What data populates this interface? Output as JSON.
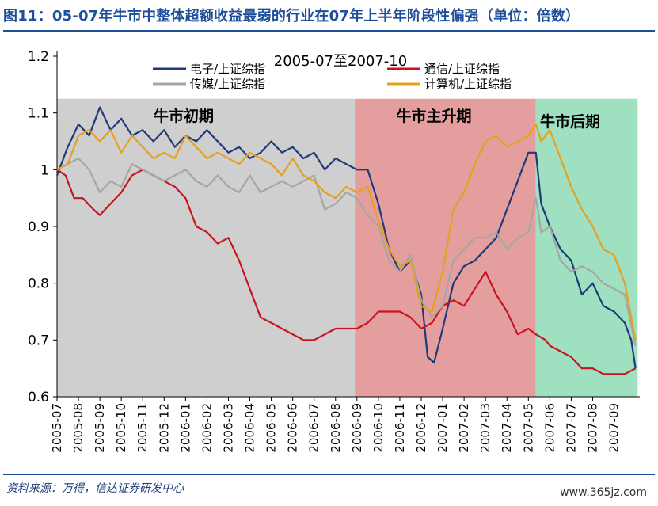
{
  "figure_title": "图11：05-07年牛市中整体超额收益最弱的行业在07年上半年阶段性偏强（单位：倍数）",
  "source_note": "资料来源：万得，信达证券研发中心",
  "watermark": "www.365jz.com",
  "chart_data": {
    "type": "line",
    "title": "2005-07至2007-10",
    "xlabel": "",
    "ylabel": "",
    "ylim": [
      0.6,
      1.2
    ],
    "yticks": [
      "0.6",
      "0.7",
      "0.8",
      "0.9",
      "1",
      "1.1",
      "1.2"
    ],
    "x_categories": [
      "2005-07",
      "2005-08",
      "2005-09",
      "2005-10",
      "2005-11",
      "2005-12",
      "2006-01",
      "2006-02",
      "2006-03",
      "2006-04",
      "2006-05",
      "2006-06",
      "2006-07",
      "2006-08",
      "2006-09",
      "2006-10",
      "2006-11",
      "2006-12",
      "2007-01",
      "2007-02",
      "2007-03",
      "2007-04",
      "2007-05",
      "2007-06",
      "2007-07",
      "2007-08",
      "2007-09"
    ],
    "grid": false,
    "legend_position": "top",
    "phases": [
      {
        "label": "牛市初期",
        "start_month": 0,
        "end_month": 13.9,
        "color": "#cfcfcf"
      },
      {
        "label": "牛市主升期",
        "start_month": 13.9,
        "end_month": 22.35,
        "color": "#e49e9e"
      },
      {
        "label": "牛市后期",
        "start_month": 22.35,
        "end_month": 27.1,
        "color": "#9ee0bf"
      }
    ],
    "series": [
      {
        "name": "电子/上证综指",
        "color": "#1f3a7a",
        "points": [
          [
            0,
            0.99
          ],
          [
            0.5,
            1.04
          ],
          [
            1,
            1.08
          ],
          [
            1.5,
            1.06
          ],
          [
            2,
            1.11
          ],
          [
            2.5,
            1.07
          ],
          [
            3,
            1.09
          ],
          [
            3.5,
            1.06
          ],
          [
            4,
            1.07
          ],
          [
            4.5,
            1.05
          ],
          [
            5,
            1.07
          ],
          [
            5.5,
            1.04
          ],
          [
            6,
            1.06
          ],
          [
            6.5,
            1.05
          ],
          [
            7,
            1.07
          ],
          [
            7.5,
            1.05
          ],
          [
            8,
            1.03
          ],
          [
            8.5,
            1.04
          ],
          [
            9,
            1.02
          ],
          [
            9.5,
            1.03
          ],
          [
            10,
            1.05
          ],
          [
            10.5,
            1.03
          ],
          [
            11,
            1.04
          ],
          [
            11.5,
            1.02
          ],
          [
            12,
            1.03
          ],
          [
            12.5,
            1.0
          ],
          [
            13,
            1.02
          ],
          [
            13.5,
            1.01
          ],
          [
            14,
            1.0
          ],
          [
            14.5,
            1.0
          ],
          [
            15,
            0.94
          ],
          [
            15.5,
            0.86
          ],
          [
            16,
            0.82
          ],
          [
            16.5,
            0.84
          ],
          [
            17,
            0.78
          ],
          [
            17.3,
            0.67
          ],
          [
            17.6,
            0.66
          ],
          [
            18,
            0.72
          ],
          [
            18.5,
            0.8
          ],
          [
            19,
            0.83
          ],
          [
            19.5,
            0.84
          ],
          [
            20,
            0.86
          ],
          [
            20.5,
            0.88
          ],
          [
            21,
            0.93
          ],
          [
            21.5,
            0.98
          ],
          [
            22,
            1.03
          ],
          [
            22.35,
            1.03
          ],
          [
            22.6,
            0.94
          ],
          [
            23,
            0.9
          ],
          [
            23.5,
            0.86
          ],
          [
            24,
            0.84
          ],
          [
            24.5,
            0.78
          ],
          [
            25,
            0.8
          ],
          [
            25.5,
            0.76
          ],
          [
            26,
            0.75
          ],
          [
            26.5,
            0.73
          ],
          [
            26.8,
            0.7
          ],
          [
            27,
            0.65
          ]
        ]
      },
      {
        "name": "通信/上证综指",
        "color": "#c8141e",
        "points": [
          [
            0,
            1.0
          ],
          [
            0.4,
            0.99
          ],
          [
            0.8,
            0.95
          ],
          [
            1.2,
            0.95
          ],
          [
            1.7,
            0.93
          ],
          [
            2,
            0.92
          ],
          [
            2.5,
            0.94
          ],
          [
            3,
            0.96
          ],
          [
            3.5,
            0.99
          ],
          [
            4,
            1.0
          ],
          [
            4.5,
            0.99
          ],
          [
            5,
            0.98
          ],
          [
            5.5,
            0.97
          ],
          [
            6,
            0.95
          ],
          [
            6.5,
            0.9
          ],
          [
            7,
            0.89
          ],
          [
            7.5,
            0.87
          ],
          [
            8,
            0.88
          ],
          [
            8.5,
            0.84
          ],
          [
            9,
            0.79
          ],
          [
            9.5,
            0.74
          ],
          [
            10,
            0.73
          ],
          [
            10.5,
            0.72
          ],
          [
            11,
            0.71
          ],
          [
            11.5,
            0.7
          ],
          [
            12,
            0.7
          ],
          [
            12.5,
            0.71
          ],
          [
            13,
            0.72
          ],
          [
            13.5,
            0.72
          ],
          [
            14,
            0.72
          ],
          [
            14.5,
            0.73
          ],
          [
            15,
            0.75
          ],
          [
            15.5,
            0.75
          ],
          [
            16,
            0.75
          ],
          [
            16.5,
            0.74
          ],
          [
            17,
            0.72
          ],
          [
            17.5,
            0.73
          ],
          [
            18,
            0.76
          ],
          [
            18.5,
            0.77
          ],
          [
            19,
            0.76
          ],
          [
            19.5,
            0.79
          ],
          [
            20,
            0.82
          ],
          [
            20.5,
            0.78
          ],
          [
            21,
            0.75
          ],
          [
            21.5,
            0.71
          ],
          [
            22,
            0.72
          ],
          [
            22.35,
            0.71
          ],
          [
            22.8,
            0.7
          ],
          [
            23,
            0.69
          ],
          [
            23.5,
            0.68
          ],
          [
            24,
            0.67
          ],
          [
            24.5,
            0.65
          ],
          [
            25,
            0.65
          ],
          [
            25.5,
            0.64
          ],
          [
            26,
            0.64
          ],
          [
            26.5,
            0.64
          ],
          [
            27,
            0.65
          ]
        ]
      },
      {
        "name": "传媒/上证综指",
        "color": "#a6a6a6",
        "points": [
          [
            0,
            1.0
          ],
          [
            0.5,
            1.01
          ],
          [
            1,
            1.02
          ],
          [
            1.5,
            1.0
          ],
          [
            2,
            0.96
          ],
          [
            2.5,
            0.98
          ],
          [
            3,
            0.97
          ],
          [
            3.5,
            1.01
          ],
          [
            4,
            1.0
          ],
          [
            4.5,
            0.99
          ],
          [
            5,
            0.98
          ],
          [
            5.5,
            0.99
          ],
          [
            6,
            1.0
          ],
          [
            6.5,
            0.98
          ],
          [
            7,
            0.97
          ],
          [
            7.5,
            0.99
          ],
          [
            8,
            0.97
          ],
          [
            8.5,
            0.96
          ],
          [
            9,
            0.99
          ],
          [
            9.5,
            0.96
          ],
          [
            10,
            0.97
          ],
          [
            10.5,
            0.98
          ],
          [
            11,
            0.97
          ],
          [
            11.5,
            0.98
          ],
          [
            12,
            0.99
          ],
          [
            12.5,
            0.93
          ],
          [
            13,
            0.94
          ],
          [
            13.5,
            0.96
          ],
          [
            14,
            0.95
          ],
          [
            14.5,
            0.92
          ],
          [
            15,
            0.9
          ],
          [
            15.5,
            0.84
          ],
          [
            16,
            0.82
          ],
          [
            16.5,
            0.85
          ],
          [
            17,
            0.77
          ],
          [
            17.5,
            0.74
          ],
          [
            18,
            0.76
          ],
          [
            18.5,
            0.84
          ],
          [
            19,
            0.86
          ],
          [
            19.5,
            0.88
          ],
          [
            20,
            0.88
          ],
          [
            20.5,
            0.89
          ],
          [
            21,
            0.86
          ],
          [
            21.5,
            0.88
          ],
          [
            22,
            0.89
          ],
          [
            22.35,
            0.95
          ],
          [
            22.6,
            0.89
          ],
          [
            23,
            0.9
          ],
          [
            23.5,
            0.84
          ],
          [
            24,
            0.82
          ],
          [
            24.5,
            0.83
          ],
          [
            25,
            0.82
          ],
          [
            25.5,
            0.8
          ],
          [
            26,
            0.79
          ],
          [
            26.5,
            0.78
          ],
          [
            27,
            0.69
          ]
        ]
      },
      {
        "name": "计算机/上证综指",
        "color": "#e6a020",
        "points": [
          [
            0,
            1.0
          ],
          [
            0.5,
            1.01
          ],
          [
            1,
            1.06
          ],
          [
            1.5,
            1.07
          ],
          [
            2,
            1.05
          ],
          [
            2.5,
            1.07
          ],
          [
            3,
            1.03
          ],
          [
            3.5,
            1.06
          ],
          [
            4,
            1.04
          ],
          [
            4.5,
            1.02
          ],
          [
            5,
            1.03
          ],
          [
            5.5,
            1.02
          ],
          [
            6,
            1.06
          ],
          [
            6.5,
            1.04
          ],
          [
            7,
            1.02
          ],
          [
            7.5,
            1.03
          ],
          [
            8,
            1.02
          ],
          [
            8.5,
            1.01
          ],
          [
            9,
            1.03
          ],
          [
            9.5,
            1.02
          ],
          [
            10,
            1.01
          ],
          [
            10.5,
            0.99
          ],
          [
            11,
            1.02
          ],
          [
            11.5,
            0.99
          ],
          [
            12,
            0.98
          ],
          [
            12.5,
            0.96
          ],
          [
            13,
            0.95
          ],
          [
            13.5,
            0.97
          ],
          [
            14,
            0.96
          ],
          [
            14.5,
            0.97
          ],
          [
            15,
            0.91
          ],
          [
            15.5,
            0.86
          ],
          [
            16,
            0.83
          ],
          [
            16.5,
            0.84
          ],
          [
            17,
            0.76
          ],
          [
            17.5,
            0.75
          ],
          [
            18,
            0.82
          ],
          [
            18.5,
            0.93
          ],
          [
            19,
            0.96
          ],
          [
            19.5,
            1.01
          ],
          [
            20,
            1.05
          ],
          [
            20.5,
            1.06
          ],
          [
            21,
            1.04
          ],
          [
            21.5,
            1.05
          ],
          [
            22,
            1.06
          ],
          [
            22.35,
            1.08
          ],
          [
            22.6,
            1.05
          ],
          [
            23,
            1.07
          ],
          [
            23.5,
            1.02
          ],
          [
            24,
            0.97
          ],
          [
            24.5,
            0.93
          ],
          [
            25,
            0.9
          ],
          [
            25.5,
            0.86
          ],
          [
            26,
            0.85
          ],
          [
            26.5,
            0.8
          ],
          [
            27,
            0.7
          ]
        ]
      }
    ]
  }
}
